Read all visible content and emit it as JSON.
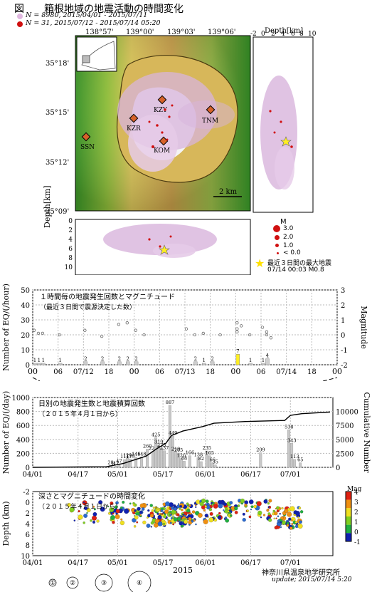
{
  "header": {
    "title_prefix": "図",
    "title": "箱根地域の地震活動の時間変化",
    "legend1": "N = 8980,  2015/04/01 - 2015/07/11",
    "legend2": "N = 31,     2015/07/12 - 2015/07/14 05:20"
  },
  "map": {
    "lon_ticks": [
      "138°57'",
      "139°00'",
      "139°03'",
      "139°06'"
    ],
    "lat_ticks": [
      "35°18'",
      "35°15'",
      "35°12'",
      "35°09'"
    ],
    "stations": [
      "KZY",
      "TNM",
      "KZR",
      "SSN",
      "KOM"
    ],
    "scale_label": "2 km"
  },
  "depth_side": {
    "title": "Depth[km]",
    "ticks": [
      "-2",
      "0",
      "2",
      "4",
      "6",
      "8",
      "10"
    ]
  },
  "depth_bottom": {
    "ylabel": "Depth[km]",
    "ticks": [
      "0",
      "2",
      "4",
      "6",
      "8",
      "10"
    ]
  },
  "mag_legend": {
    "title": "M",
    "items": [
      "3.0",
      "2.0",
      "1.0",
      "< 0.0"
    ],
    "star_label1": "最近３日間の最大地震",
    "star_label2": "07/14 00:03 M0.8"
  },
  "chart_data": [
    {
      "type": "bar",
      "title": "１時間毎の地震発生回数とマグニチュード",
      "subtitle": "（最近３日間で震源決定した数）",
      "ylabel": "Number of EQ/(/hour)",
      "y2label": "Magnitude",
      "ylim": [
        0,
        50
      ],
      "y2lim": [
        -2,
        3
      ],
      "yticks": [
        "0",
        "10",
        "20",
        "30",
        "40",
        "50"
      ],
      "y2ticks": [
        "-2",
        "-1",
        "0",
        "1",
        "2",
        "3"
      ],
      "xticks": [
        "00",
        "06",
        "07/12",
        "18",
        "00",
        "06",
        "07/13",
        "18",
        "00",
        "06",
        "07/14",
        "18",
        "00"
      ],
      "bars": [
        {
          "hour": 0,
          "value": 1
        },
        {
          "hour": 1,
          "value": 1
        },
        {
          "hour": 2,
          "value": 1
        },
        {
          "hour": 6,
          "value": 1
        },
        {
          "hour": 12,
          "value": 2
        },
        {
          "hour": 16,
          "value": 2
        },
        {
          "hour": 20,
          "value": 2
        },
        {
          "hour": 22,
          "value": 2
        },
        {
          "hour": 24,
          "value": 2
        },
        {
          "hour": 38,
          "value": 2
        },
        {
          "hour": 40,
          "value": 1
        },
        {
          "hour": 42,
          "value": 2
        },
        {
          "hour": 48,
          "value": 7,
          "highlight": true
        },
        {
          "hour": 51,
          "value": 1
        },
        {
          "hour": 54,
          "value": 1
        },
        {
          "hour": 55,
          "value": 4
        }
      ],
      "magnitudes": [
        {
          "hour": 0,
          "mag": 0.3
        },
        {
          "hour": 1,
          "mag": 0.1
        },
        {
          "hour": 2,
          "mag": 0.1
        },
        {
          "hour": 6,
          "mag": 0.0
        },
        {
          "hour": 12,
          "mag": 0.3
        },
        {
          "hour": 16,
          "mag": -0.1
        },
        {
          "hour": 20,
          "mag": 0.7
        },
        {
          "hour": 22,
          "mag": 0.8
        },
        {
          "hour": 24,
          "mag": 0.3
        },
        {
          "hour": 26,
          "mag": 0.0
        },
        {
          "hour": 36,
          "mag": 0.4
        },
        {
          "hour": 38,
          "mag": 0.0
        },
        {
          "hour": 40,
          "mag": 0.1
        },
        {
          "hour": 44,
          "mag": 0.0
        },
        {
          "hour": 48,
          "mag": 0.8
        },
        {
          "hour": 48,
          "mag": 0.4
        },
        {
          "hour": 48,
          "mag": 0.2
        },
        {
          "hour": 49,
          "mag": 0.6
        },
        {
          "hour": 51,
          "mag": 0.0
        },
        {
          "hour": 54,
          "mag": 0.5
        },
        {
          "hour": 55,
          "mag": 0.2
        },
        {
          "hour": 55,
          "mag": 0.0
        },
        {
          "hour": 56,
          "mag": -0.2
        }
      ]
    },
    {
      "type": "bar",
      "title": "日別の地震発生数と地震積算回数",
      "subtitle": "（２０１５年４月１日から）",
      "ylabel": "Number of EQ/(/day)",
      "y2label": "Cumulative Number",
      "ylim": [
        0,
        1000
      ],
      "y2lim": [
        0,
        12500
      ],
      "yticks": [
        "0",
        "200",
        "400",
        "600",
        "800",
        "1000"
      ],
      "y2ticks": [
        "0",
        "2500",
        "5000",
        "7500",
        "10000"
      ],
      "xticks": [
        "04/01",
        "04/17",
        "05/01",
        "05/17",
        "06/01",
        "06/17",
        "07/01"
      ],
      "bars": [
        {
          "day": 27,
          "value": 28
        },
        {
          "day": 28,
          "value": 8
        },
        {
          "day": 29,
          "value": 17
        },
        {
          "day": 30,
          "value": 47
        },
        {
          "day": 32,
          "value": 111
        },
        {
          "day": 33,
          "value": 129
        },
        {
          "day": 34,
          "value": 119
        },
        {
          "day": 36,
          "value": 146
        },
        {
          "day": 38,
          "value": 148
        },
        {
          "day": 40,
          "value": 260
        },
        {
          "day": 42,
          "value": 229
        },
        {
          "day": 43,
          "value": 425
        },
        {
          "day": 44,
          "value": 319
        },
        {
          "day": 45,
          "value": 275
        },
        {
          "day": 46,
          "value": 237
        },
        {
          "day": 48,
          "value": 887
        },
        {
          "day": 49,
          "value": 449
        },
        {
          "day": 50,
          "value": 219
        },
        {
          "day": 51,
          "value": 205
        },
        {
          "day": 52,
          "value": 126
        },
        {
          "day": 53,
          "value": 88
        },
        {
          "day": 55,
          "value": 166
        },
        {
          "day": 58,
          "value": 138
        },
        {
          "day": 59,
          "value": 82
        },
        {
          "day": 61,
          "value": 235
        },
        {
          "day": 62,
          "value": 165
        },
        {
          "day": 63,
          "value": 66
        },
        {
          "day": 64,
          "value": 35
        },
        {
          "day": 80,
          "value": 209
        },
        {
          "day": 90,
          "value": 538
        },
        {
          "day": 91,
          "value": 343
        },
        {
          "day": 92,
          "value": 113
        },
        {
          "day": 94,
          "value": 65
        }
      ],
      "cumulative": [
        {
          "day": 0,
          "value": 0
        },
        {
          "day": 26,
          "value": 100
        },
        {
          "day": 32,
          "value": 700
        },
        {
          "day": 40,
          "value": 2000
        },
        {
          "day": 44,
          "value": 3400
        },
        {
          "day": 47,
          "value": 4300
        },
        {
          "day": 49,
          "value": 5700
        },
        {
          "day": 53,
          "value": 6500
        },
        {
          "day": 60,
          "value": 7300
        },
        {
          "day": 64,
          "value": 7900
        },
        {
          "day": 75,
          "value": 8200
        },
        {
          "day": 89,
          "value": 8400
        },
        {
          "day": 91,
          "value": 9300
        },
        {
          "day": 95,
          "value": 9600
        },
        {
          "day": 105,
          "value": 9900
        }
      ]
    },
    {
      "type": "scatter",
      "title": "深さとマグニチュードの時間変化",
      "subtitle": "（２０１５年４月１日から）",
      "ylabel": "Depth (km)",
      "xlabel": "2015",
      "ylim": [
        10,
        -2
      ],
      "yticks": [
        "-2",
        "0",
        "2",
        "4",
        "6",
        "8",
        "10"
      ],
      "xticks": [
        "04/01",
        "04/17",
        "05/01",
        "05/17",
        "06/01",
        "06/17",
        "07/01"
      ],
      "colorbar_label": "Mag",
      "colorbar_ticks": [
        "-1",
        "0",
        "1",
        "2",
        "3",
        "4"
      ],
      "size_legend": [
        "①",
        "②",
        "③",
        "④"
      ]
    }
  ],
  "footer": {
    "institute": "神奈川県温泉地学研究所",
    "update": "update; 2015/07/14  5:20"
  }
}
